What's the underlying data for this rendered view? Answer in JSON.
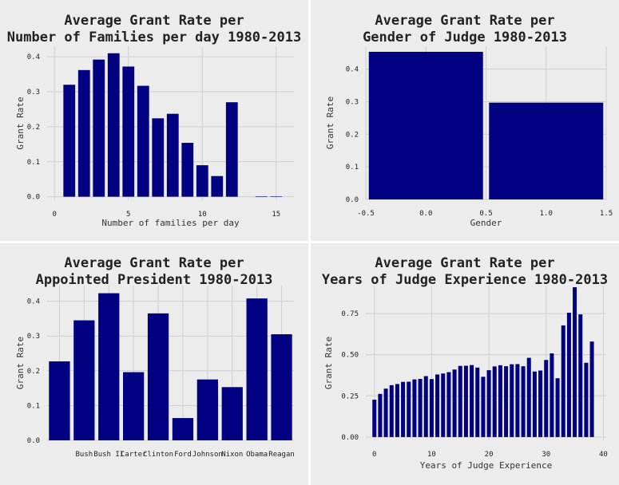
{
  "colors": {
    "background": "#ececec",
    "bar": "#000080",
    "grid": "#cfcfcf"
  },
  "chart_data": [
    {
      "type": "bar",
      "title": [
        "Average Grant Rate per",
        "Number of Families per day 1980-2013"
      ],
      "xlabel": "Number of families per day",
      "ylabel": "Grant Rate",
      "x": [
        1,
        2,
        3,
        4,
        5,
        6,
        7,
        8,
        9,
        10,
        11,
        12,
        14,
        15
      ],
      "values": [
        0.32,
        0.362,
        0.392,
        0.41,
        0.372,
        0.317,
        0.224,
        0.237,
        0.154,
        0.09,
        0.059,
        0.27,
        0.001,
        0.0
      ],
      "xlim": [
        -0.5,
        16.2
      ],
      "ylim": [
        -0.01,
        0.43
      ],
      "xticks": [
        0,
        5,
        10,
        15
      ],
      "xticklabels": [
        "0",
        "5",
        "10",
        "15"
      ],
      "yticks": [
        0.0,
        0.1,
        0.2,
        0.3,
        0.4
      ],
      "yticklabels": [
        "0.0",
        "0.1",
        "0.2",
        "0.3",
        "0.4"
      ],
      "grid": true
    },
    {
      "type": "bar",
      "title": [
        "Average Grant Rate per",
        "Gender of Judge 1980-2013"
      ],
      "xlabel": "Gender",
      "ylabel": "Grant Rate",
      "x": [
        0,
        1
      ],
      "values": [
        0.453,
        0.297
      ],
      "xlim": [
        -0.5,
        1.5
      ],
      "ylim": [
        0,
        0.47
      ],
      "xticks": [
        -0.5,
        0.0,
        0.5,
        1.0,
        1.5
      ],
      "xticklabels": [
        "-0.5",
        "0.0",
        "0.5",
        "1.0",
        "1.5"
      ],
      "yticks": [
        0.0,
        0.1,
        0.2,
        0.3,
        0.4
      ],
      "yticklabels": [
        "0.0",
        "0.1",
        "0.2",
        "0.3",
        "0.4"
      ],
      "grid": true
    },
    {
      "type": "bar",
      "title": [
        "Average Grant Rate per",
        "Appointed President 1980-2013"
      ],
      "xlabel": "",
      "ylabel": "Grant Rate",
      "categories": [
        "",
        "Bush",
        "Bush II",
        "Carter",
        "Clinton",
        "Ford",
        "Johnson",
        "Nixon",
        "Obama",
        "Reagan"
      ],
      "values": [
        0.227,
        0.345,
        0.423,
        0.196,
        0.365,
        0.064,
        0.175,
        0.153,
        0.408,
        0.305
      ],
      "ylim": [
        0,
        0.445
      ],
      "yticks": [
        0.0,
        0.1,
        0.2,
        0.3,
        0.4
      ],
      "yticklabels": [
        "0.0",
        "0.1",
        "0.2",
        "0.3",
        "0.4"
      ],
      "grid": true
    },
    {
      "type": "bar",
      "title": [
        "Average Grant Rate per",
        "Years of Judge Experience 1980-2013"
      ],
      "xlabel": "Years of Judge Experience",
      "ylabel": "Grant Rate",
      "x": [
        0,
        1,
        2,
        3,
        4,
        5,
        6,
        7,
        8,
        9,
        10,
        11,
        12,
        13,
        14,
        15,
        16,
        17,
        18,
        19,
        20,
        21,
        22,
        23,
        24,
        25,
        26,
        27,
        28,
        29,
        30,
        31,
        32,
        33,
        34,
        35,
        36,
        37,
        38
      ],
      "values": [
        0.227,
        0.262,
        0.294,
        0.315,
        0.322,
        0.335,
        0.336,
        0.35,
        0.353,
        0.37,
        0.352,
        0.38,
        0.386,
        0.394,
        0.41,
        0.432,
        0.433,
        0.437,
        0.422,
        0.366,
        0.406,
        0.429,
        0.436,
        0.43,
        0.442,
        0.443,
        0.43,
        0.481,
        0.398,
        0.404,
        0.468,
        0.508,
        0.357,
        0.678,
        0.755,
        0.91,
        0.745,
        0.451,
        0.58
      ],
      "xlim": [
        -1.5,
        40.5
      ],
      "ylim": [
        -0.02,
        0.92
      ],
      "xticks": [
        0,
        10,
        20,
        30,
        40
      ],
      "xticklabels": [
        "0",
        "10",
        "20",
        "30",
        "40"
      ],
      "yticks": [
        0.0,
        0.25,
        0.5,
        0.75
      ],
      "yticklabels": [
        "0.00",
        "0.25",
        "0.50",
        "0.75"
      ],
      "grid": true
    }
  ]
}
